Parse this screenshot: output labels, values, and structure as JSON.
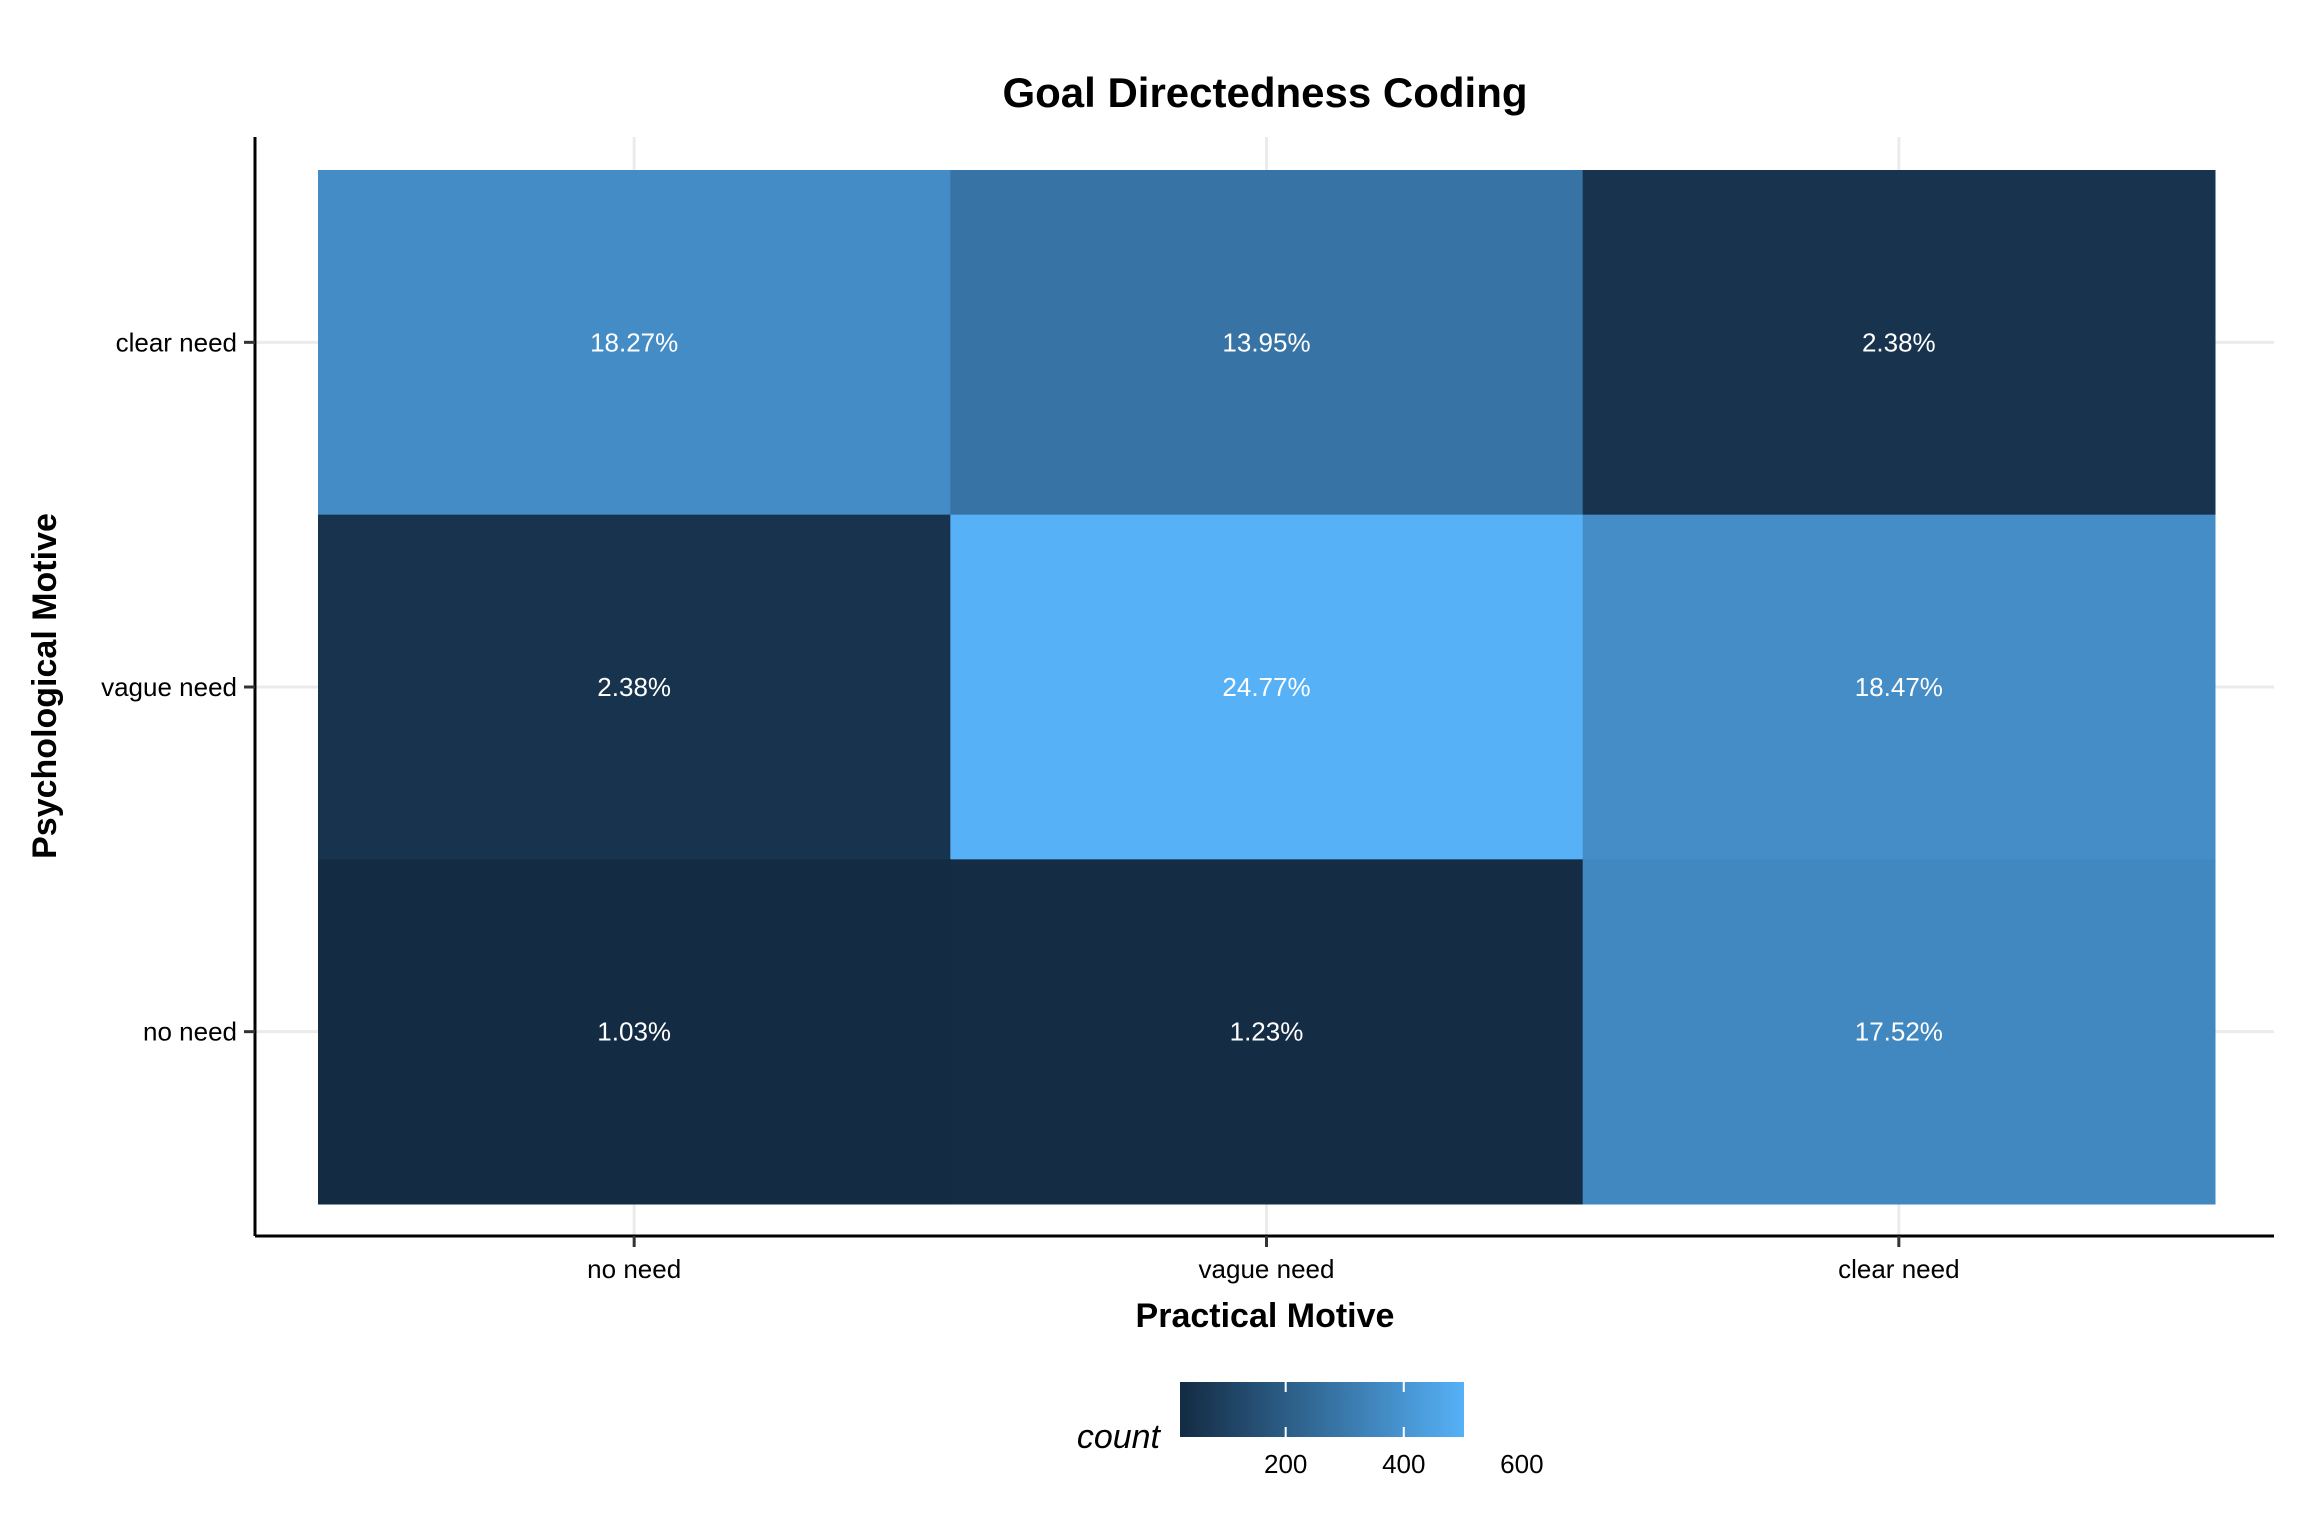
{
  "chart_data": {
    "type": "heatmap",
    "title": "Goal Directedness Coding",
    "xlabel": "Practical Motive",
    "ylabel": "Psychological Motive",
    "x_categories": [
      "no need",
      "vague need",
      "clear need"
    ],
    "y_categories": [
      "no need",
      "vague need",
      "clear need"
    ],
    "cells": [
      {
        "x": "no need",
        "y": "clear need",
        "count": 370,
        "label": "18.27%"
      },
      {
        "x": "vague need",
        "y": "clear need",
        "count": 283,
        "label": "13.95%"
      },
      {
        "x": "clear need",
        "y": "clear need",
        "count": 48,
        "label": "2.38%"
      },
      {
        "x": "no need",
        "y": "vague need",
        "count": 48,
        "label": "2.38%"
      },
      {
        "x": "vague need",
        "y": "vague need",
        "count": 502,
        "label": "24.77%"
      },
      {
        "x": "clear need",
        "y": "vague need",
        "count": 374,
        "label": "18.47%"
      },
      {
        "x": "no need",
        "y": "no need",
        "count": 21,
        "label": "1.03%"
      },
      {
        "x": "vague need",
        "y": "no need",
        "count": 25,
        "label": "1.23%"
      },
      {
        "x": "clear need",
        "y": "no need",
        "count": 355,
        "label": "17.52%"
      }
    ],
    "legend": {
      "title": "count",
      "position": "bottom",
      "ticks": [
        200,
        400,
        600
      ],
      "range": [
        21,
        502
      ],
      "color_low": "#132B43",
      "color_high": "#56B1F7"
    },
    "grid": true
  }
}
